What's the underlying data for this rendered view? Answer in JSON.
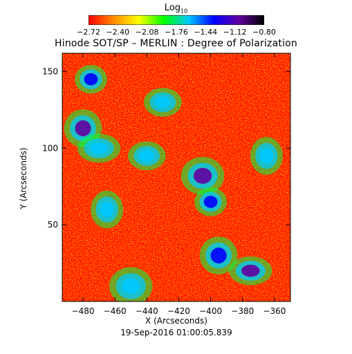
{
  "colorbar": {
    "title_main": "Log",
    "title_sub": "10",
    "ticks": [
      "-2.72",
      "-2.40",
      "-2.08",
      "-1.76",
      "-1.44",
      "-1.12",
      "-0.80"
    ],
    "colors": [
      "#ff0000",
      "#ff8c00",
      "#ffff00",
      "#00ff00",
      "#00c8ff",
      "#0000ff",
      "#6400a0",
      "#000000"
    ]
  },
  "chart_data": {
    "type": "heatmap",
    "title": "Hinode SOT/SP – MERLIN : Degree of Polarization",
    "xlabel": "X (Arcseconds)",
    "ylabel": "Y (Arcseconds)",
    "date": "19-Sep-2016 01:00:05.839",
    "xlim": [
      -493,
      -350
    ],
    "ylim": [
      0,
      162
    ],
    "xticks": [
      -480,
      -460,
      -440,
      -420,
      -400,
      -380,
      -360
    ],
    "yticks": [
      50,
      100,
      150
    ],
    "value_range": [
      -2.72,
      -0.8
    ],
    "strong_regions": [
      {
        "x": -475,
        "y": 145,
        "value": -1.3
      },
      {
        "x": -480,
        "y": 113,
        "value": -1.0
      },
      {
        "x": -470,
        "y": 100,
        "value": -1.5
      },
      {
        "x": -465,
        "y": 60,
        "value": -1.5
      },
      {
        "x": -440,
        "y": 95,
        "value": -1.5
      },
      {
        "x": -405,
        "y": 82,
        "value": -1.0
      },
      {
        "x": -400,
        "y": 65,
        "value": -1.4
      },
      {
        "x": -395,
        "y": 30,
        "value": -1.4
      },
      {
        "x": -375,
        "y": 20,
        "value": -1.2
      },
      {
        "x": -365,
        "y": 95,
        "value": -1.5
      },
      {
        "x": -430,
        "y": 130,
        "value": -1.7
      },
      {
        "x": -450,
        "y": 10,
        "value": -1.6
      }
    ]
  }
}
